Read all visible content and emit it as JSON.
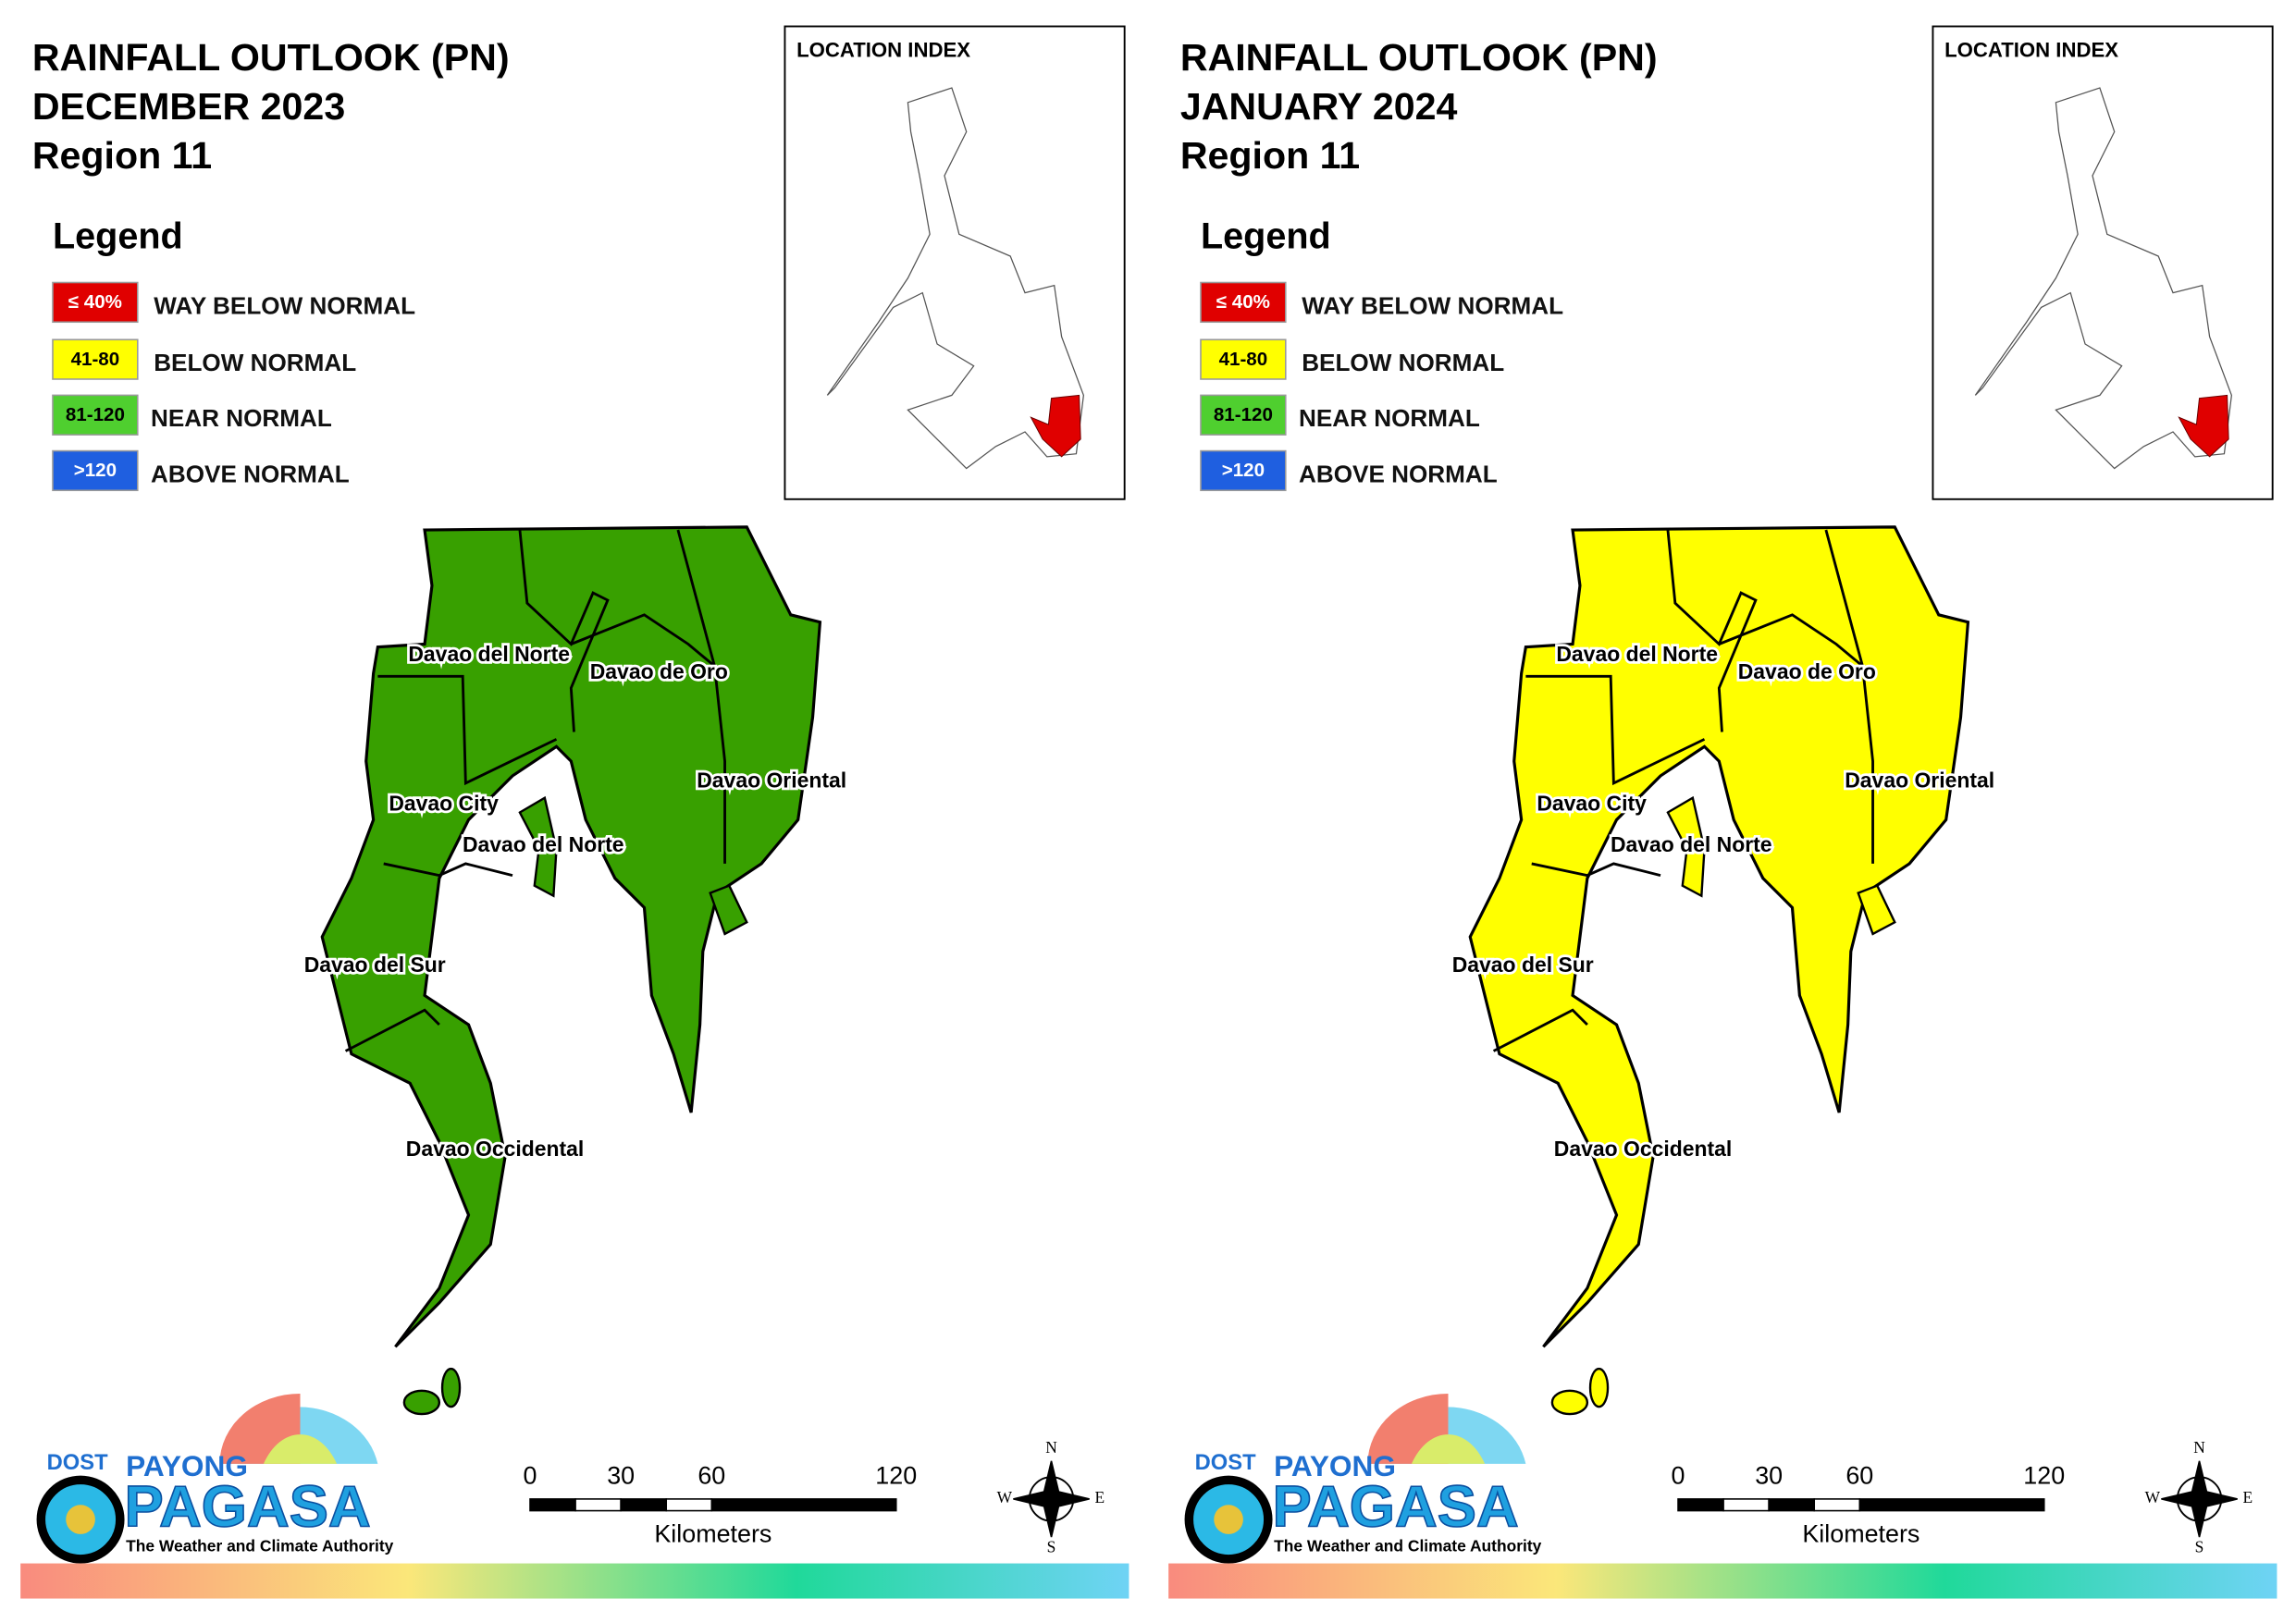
{
  "panels": [
    {
      "title_lines": [
        "RAINFALL OUTLOOK (PN)",
        "DECEMBER 2023",
        "Region 11"
      ],
      "legend_title": "Legend",
      "legend": [
        {
          "code": "≤ 40%",
          "label": "WAY BELOW NORMAL",
          "color": "#e00000"
        },
        {
          "code": "41-80",
          "label": "BELOW NORMAL",
          "color": "#ffff00"
        },
        {
          "code": "81-120",
          "label": "NEAR NORMAL",
          "color": "#4fcf2f"
        },
        {
          "code": ">120",
          "label": "ABOVE NORMAL",
          "color": "#1f5fe0"
        }
      ],
      "location_index": "LOCATION INDEX",
      "map_color": "#38a000",
      "map_labels": [
        "Davao del Norte",
        "Davao de Oro",
        "Davao City",
        "Davao del Norte",
        "Davao Oriental",
        "Davao del Sur",
        "Davao Occidental"
      ],
      "scale_ticks": [
        "0",
        "30",
        "60",
        "120"
      ],
      "scale_unit": "Kilometers",
      "compass": [
        "N",
        "W",
        "E",
        "S"
      ],
      "logo": {
        "dost": "DOST",
        "payong": "PAYONG",
        "pagasa": "PAGASA",
        "tagline": "The Weather and Climate Authority"
      }
    },
    {
      "title_lines": [
        "RAINFALL OUTLOOK (PN)",
        "JANUARY 2024",
        "Region 11"
      ],
      "legend_title": "Legend",
      "legend": [
        {
          "code": "≤ 40%",
          "label": "WAY BELOW NORMAL",
          "color": "#e00000"
        },
        {
          "code": "41-80",
          "label": "BELOW NORMAL",
          "color": "#ffff00"
        },
        {
          "code": "81-120",
          "label": "NEAR NORMAL",
          "color": "#4fcf2f"
        },
        {
          "code": ">120",
          "label": "ABOVE NORMAL",
          "color": "#1f5fe0"
        }
      ],
      "location_index": "LOCATION INDEX",
      "map_color": "#ffff00",
      "map_labels": [
        "Davao del Norte",
        "Davao de Oro",
        "Davao City",
        "Davao del Norte",
        "Davao Oriental",
        "Davao del Sur",
        "Davao Occidental"
      ],
      "scale_ticks": [
        "0",
        "30",
        "60",
        "120"
      ],
      "scale_unit": "Kilometers",
      "compass": [
        "N",
        "W",
        "E",
        "S"
      ],
      "logo": {
        "dost": "DOST",
        "payong": "PAYONG",
        "pagasa": "PAGASA",
        "tagline": "The Weather and Climate Authority"
      }
    }
  ]
}
